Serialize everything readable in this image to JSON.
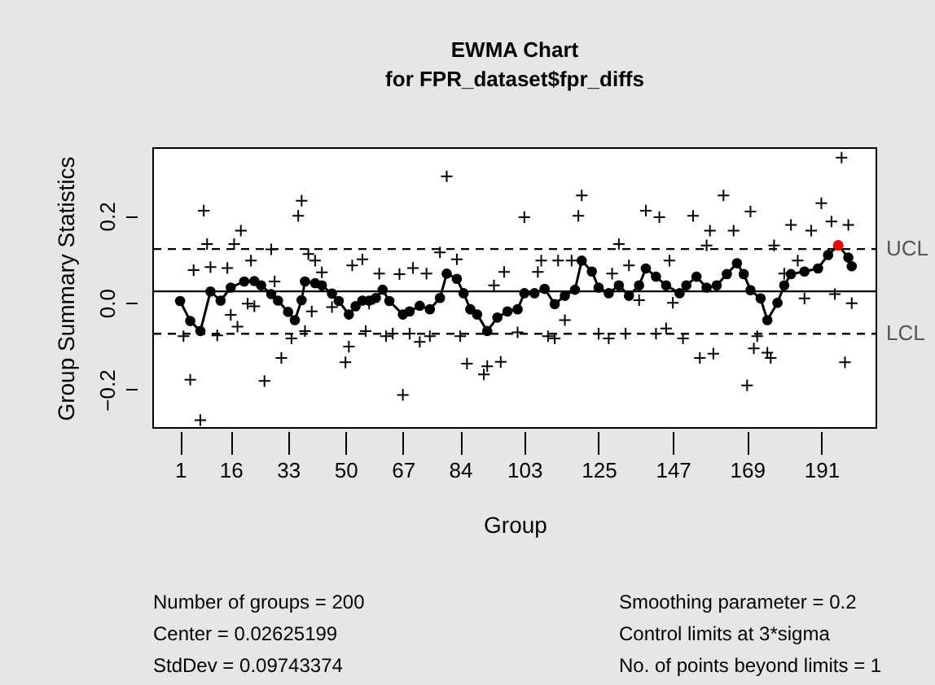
{
  "chart_data": {
    "type": "line",
    "title": "EWMA Chart",
    "subtitle": "for FPR_dataset$fpr_diffs",
    "xlabel": "Group",
    "ylabel": "Group Summary Statistics",
    "xlim": [
      -7,
      207.3
    ],
    "xticks": [
      1,
      16,
      33,
      50,
      67,
      84,
      103,
      125,
      147,
      169,
      191
    ],
    "ylim": [
      -0.288,
      0.356
    ],
    "yticks": [
      {
        "value": -0.2,
        "label": "−0.2"
      },
      {
        "value": 0,
        "label": "0.0"
      },
      {
        "value": 0.2,
        "label": "0.2"
      }
    ],
    "series": [
      {
        "type": "scatter",
        "marker": "cross",
        "color": "#000000",
        "x": [
          2,
          4,
          5,
          7,
          8,
          9,
          10,
          12,
          15,
          16,
          17,
          18,
          19,
          21,
          22,
          23,
          26,
          28,
          29,
          31,
          34,
          36,
          37,
          38,
          39,
          40,
          41,
          43,
          46,
          50,
          51,
          52,
          55,
          56,
          57,
          60,
          62,
          64,
          66,
          67,
          69,
          70,
          72,
          74,
          75,
          78,
          80,
          83,
          84,
          86,
          91,
          92,
          94,
          96,
          97,
          101,
          103,
          107,
          108,
          110,
          112,
          113,
          115,
          117,
          119,
          120,
          125,
          128,
          129,
          131,
          133,
          134,
          137,
          139,
          142,
          143,
          145,
          146,
          147,
          150,
          153,
          155,
          157,
          158,
          159,
          162,
          165,
          169,
          170,
          171,
          172,
          175,
          176,
          177,
          180,
          182,
          184,
          186,
          188,
          191,
          194,
          195,
          197,
          198,
          199,
          200
        ],
        "values": [
          -0.077,
          -0.177,
          0.075,
          -0.27,
          0.212,
          0.135,
          0.082,
          -0.075,
          0.08,
          -0.028,
          0.135,
          -0.055,
          0.166,
          -0.002,
          0.097,
          -0.008,
          -0.18,
          0.123,
          0.049,
          -0.127,
          -0.082,
          0.2,
          0.235,
          -0.065,
          0.112,
          -0.02,
          0.097,
          0.07,
          -0.01,
          -0.137,
          -0.101,
          0.086,
          0.1,
          -0.065,
          -0.002,
          0.067,
          -0.077,
          -0.071,
          0.066,
          -0.212,
          -0.071,
          0.08,
          -0.09,
          0.067,
          -0.077,
          0.116,
          0.291,
          0.1,
          -0.077,
          -0.14,
          -0.165,
          -0.146,
          0.04,
          -0.136,
          0.071,
          -0.068,
          0.197,
          0.071,
          0.097,
          -0.077,
          -0.082,
          0.097,
          -0.04,
          0.097,
          0.2,
          0.247,
          -0.071,
          -0.082,
          0.067,
          0.135,
          -0.071,
          0.086,
          0.006,
          0.212,
          -0.071,
          0.197,
          -0.059,
          0.097,
          0.0,
          -0.082,
          0.2,
          -0.127,
          0.132,
          0.166,
          -0.117,
          0.247,
          0.166,
          -0.19,
          0.21,
          -0.105,
          -0.077,
          -0.115,
          -0.127,
          0.132,
          0.067,
          0.179,
          0.097,
          0.01,
          0.166,
          0.229,
          0.187,
          0.02,
          0.334,
          -0.137,
          0.179,
          -0.001
        ]
      },
      {
        "marker": "circle",
        "color": "#000000",
        "x": [
          1,
          4,
          7,
          10,
          13,
          16,
          20,
          23,
          25,
          28,
          30,
          33,
          35,
          37,
          38,
          41,
          43,
          46,
          48,
          51,
          53,
          55,
          57,
          59,
          61,
          63,
          67,
          69,
          72,
          75,
          78,
          80,
          83,
          85,
          87,
          89,
          92,
          95,
          98,
          101,
          103,
          106,
          109,
          112,
          115,
          118,
          120,
          123,
          125,
          128,
          131,
          134,
          137,
          139,
          142,
          145,
          149,
          151,
          154,
          157,
          160,
          163,
          166,
          168,
          170,
          173,
          175,
          178,
          180,
          182,
          186,
          190,
          193,
          196,
          199,
          200
        ],
        "values": [
          0.004,
          -0.042,
          -0.065,
          0.026,
          0.005,
          0.035,
          0.049,
          0.05,
          0.04,
          0.02,
          0.005,
          -0.021,
          -0.04,
          0.006,
          0.049,
          0.045,
          0.04,
          0.021,
          0.004,
          -0.027,
          -0.008,
          0.005,
          0.005,
          0.011,
          0.03,
          0.004,
          -0.027,
          -0.02,
          -0.007,
          -0.015,
          0.011,
          0.067,
          0.055,
          0.022,
          -0.015,
          -0.027,
          -0.065,
          -0.034,
          -0.02,
          -0.015,
          0.022,
          0.022,
          0.032,
          -0.003,
          0.016,
          0.03,
          0.097,
          0.072,
          0.035,
          0.022,
          0.04,
          0.016,
          0.04,
          0.079,
          0.06,
          0.04,
          0.022,
          0.04,
          0.06,
          0.035,
          0.04,
          0.066,
          0.091,
          0.066,
          0.029,
          0.01,
          -0.04,
          0.0,
          0.04,
          0.066,
          0.072,
          0.079,
          0.11,
          0.132,
          0.104,
          0.084
        ]
      },
      {
        "type": "scatter",
        "marker": "circle",
        "color": "#ff0000",
        "x": [
          196
        ],
        "values": [
          0.132
        ]
      }
    ],
    "ref_lines": [
      {
        "axis": "y",
        "value": 0.02625199,
        "line_style": "solid",
        "color": "#000000"
      },
      {
        "axis": "y",
        "value": 0.1237,
        "label": "UCL",
        "line_style": "dashed",
        "color": "#000000"
      },
      {
        "axis": "y",
        "value": -0.0712,
        "label": "LCL",
        "line_style": "dashed",
        "color": "#000000"
      }
    ],
    "annotations": [
      "Number of groups = 200",
      "Center = 0.02625199",
      "StdDev = 0.09743374",
      "Smoothing parameter =  0.2",
      "Control limits at 3*sigma",
      "No. of points beyond limits = 1"
    ]
  }
}
